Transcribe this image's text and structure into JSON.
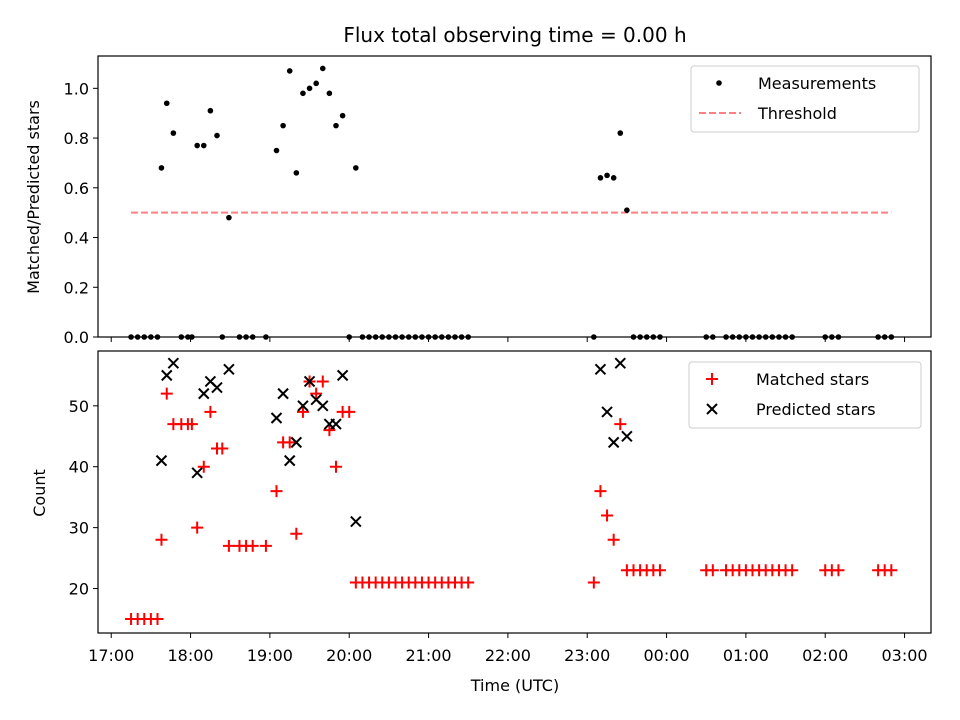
{
  "chart_data": [
    {
      "type": "scatter",
      "title": "Flux total observing time = 0.00 h",
      "xlabel": "",
      "ylabel": "Matched/Predicted stars",
      "xlim": [
        "16:50",
        "03:20"
      ],
      "ylim": [
        0.0,
        1.13
      ],
      "yticks": [
        0.0,
        0.2,
        0.4,
        0.6,
        0.8,
        1.0
      ],
      "yticklabels": [
        "0.0",
        "0.2",
        "0.4",
        "0.6",
        "0.8",
        "1.0"
      ],
      "legend_position": "top-right",
      "legend": [
        "Measurements",
        "Threshold"
      ],
      "threshold": {
        "name": "Threshold",
        "x_start": "17:15",
        "x_end": "02:50",
        "y": 0.5,
        "color": "#ff8080",
        "style": "dashed"
      },
      "series": [
        {
          "name": "Measurements",
          "color": "#000000",
          "points": [
            [
              "17:15",
              0
            ],
            [
              "17:20",
              0
            ],
            [
              "17:25",
              0
            ],
            [
              "17:30",
              0
            ],
            [
              "17:35",
              0
            ],
            [
              "17:38",
              0.68
            ],
            [
              "17:42",
              0.94
            ],
            [
              "17:47",
              0.82
            ],
            [
              "17:53",
              0
            ],
            [
              "17:58",
              0
            ],
            [
              "18:01",
              0
            ],
            [
              "18:05",
              0.77
            ],
            [
              "18:10",
              0.77
            ],
            [
              "18:15",
              0.91
            ],
            [
              "18:20",
              0.81
            ],
            [
              "18:24",
              0
            ],
            [
              "18:29",
              0.48
            ],
            [
              "18:37",
              0
            ],
            [
              "18:42",
              0
            ],
            [
              "18:47",
              0
            ],
            [
              "18:57",
              0
            ],
            [
              "19:05",
              0.75
            ],
            [
              "19:10",
              0.85
            ],
            [
              "19:15",
              1.07
            ],
            [
              "19:20",
              0.66
            ],
            [
              "19:25",
              0.98
            ],
            [
              "19:30",
              1.0
            ],
            [
              "19:35",
              1.02
            ],
            [
              "19:40",
              1.08
            ],
            [
              "19:45",
              0.98
            ],
            [
              "19:50",
              0.85
            ],
            [
              "19:55",
              0.89
            ],
            [
              "20:00",
              0
            ],
            [
              "20:05",
              0.68
            ],
            [
              "20:10",
              0
            ],
            [
              "20:15",
              0
            ],
            [
              "20:20",
              0
            ],
            [
              "20:25",
              0
            ],
            [
              "20:30",
              0
            ],
            [
              "20:35",
              0
            ],
            [
              "20:40",
              0
            ],
            [
              "20:45",
              0
            ],
            [
              "20:50",
              0
            ],
            [
              "20:55",
              0
            ],
            [
              "21:00",
              0
            ],
            [
              "21:05",
              0
            ],
            [
              "21:10",
              0
            ],
            [
              "21:15",
              0
            ],
            [
              "21:20",
              0
            ],
            [
              "21:25",
              0
            ],
            [
              "21:30",
              0
            ],
            [
              "23:05",
              0
            ],
            [
              "23:10",
              0.64
            ],
            [
              "23:15",
              0.65
            ],
            [
              "23:20",
              0.64
            ],
            [
              "23:25",
              0.82
            ],
            [
              "23:30",
              0.51
            ],
            [
              "23:35",
              0
            ],
            [
              "23:40",
              0
            ],
            [
              "23:45",
              0
            ],
            [
              "23:50",
              0
            ],
            [
              "23:55",
              0
            ],
            [
              "00:30",
              0
            ],
            [
              "00:35",
              0
            ],
            [
              "00:45",
              0
            ],
            [
              "00:50",
              0
            ],
            [
              "00:55",
              0
            ],
            [
              "01:00",
              0
            ],
            [
              "01:05",
              0
            ],
            [
              "01:10",
              0
            ],
            [
              "01:15",
              0
            ],
            [
              "01:20",
              0
            ],
            [
              "01:25",
              0
            ],
            [
              "01:30",
              0
            ],
            [
              "01:35",
              0
            ],
            [
              "02:00",
              0
            ],
            [
              "02:05",
              0
            ],
            [
              "02:10",
              0
            ],
            [
              "02:40",
              0
            ],
            [
              "02:45",
              0
            ],
            [
              "02:50",
              0
            ]
          ]
        }
      ]
    },
    {
      "type": "scatter",
      "title": "",
      "xlabel": "Time (UTC)",
      "ylabel": "Count",
      "xlim": [
        "16:50",
        "03:20"
      ],
      "ylim": [
        12.7,
        59.0
      ],
      "yticks": [
        20,
        30,
        40,
        50
      ],
      "yticklabels": [
        "20",
        "30",
        "40",
        "50"
      ],
      "xticks": [
        "17:00",
        "18:00",
        "19:00",
        "20:00",
        "21:00",
        "22:00",
        "23:00",
        "00:00",
        "01:00",
        "02:00",
        "03:00"
      ],
      "legend_position": "top-right",
      "legend": [
        "Matched stars",
        "Predicted stars"
      ],
      "series": [
        {
          "name": "Matched stars",
          "color": "#ff0000",
          "marker": "plus",
          "points": [
            [
              "17:15",
              15
            ],
            [
              "17:20",
              15
            ],
            [
              "17:25",
              15
            ],
            [
              "17:30",
              15
            ],
            [
              "17:35",
              15
            ],
            [
              "17:38",
              28
            ],
            [
              "17:42",
              52
            ],
            [
              "17:47",
              47
            ],
            [
              "17:53",
              47
            ],
            [
              "17:58",
              47
            ],
            [
              "18:01",
              47
            ],
            [
              "18:05",
              30
            ],
            [
              "18:10",
              40
            ],
            [
              "18:15",
              49
            ],
            [
              "18:20",
              43
            ],
            [
              "18:24",
              43
            ],
            [
              "18:29",
              27
            ],
            [
              "18:37",
              27
            ],
            [
              "18:42",
              27
            ],
            [
              "18:47",
              27
            ],
            [
              "18:57",
              27
            ],
            [
              "19:05",
              36
            ],
            [
              "19:10",
              44
            ],
            [
              "19:15",
              44
            ],
            [
              "19:20",
              29
            ],
            [
              "19:25",
              49
            ],
            [
              "19:30",
              54
            ],
            [
              "19:35",
              52
            ],
            [
              "19:40",
              54
            ],
            [
              "19:45",
              46
            ],
            [
              "19:50",
              40
            ],
            [
              "19:55",
              49
            ],
            [
              "20:00",
              49
            ],
            [
              "20:05",
              21
            ],
            [
              "20:10",
              21
            ],
            [
              "20:15",
              21
            ],
            [
              "20:20",
              21
            ],
            [
              "20:25",
              21
            ],
            [
              "20:30",
              21
            ],
            [
              "20:35",
              21
            ],
            [
              "20:40",
              21
            ],
            [
              "20:45",
              21
            ],
            [
              "20:50",
              21
            ],
            [
              "20:55",
              21
            ],
            [
              "21:00",
              21
            ],
            [
              "21:05",
              21
            ],
            [
              "21:10",
              21
            ],
            [
              "21:15",
              21
            ],
            [
              "21:20",
              21
            ],
            [
              "21:25",
              21
            ],
            [
              "21:30",
              21
            ],
            [
              "23:05",
              21
            ],
            [
              "23:10",
              36
            ],
            [
              "23:15",
              32
            ],
            [
              "23:20",
              28
            ],
            [
              "23:25",
              47
            ],
            [
              "23:30",
              23
            ],
            [
              "23:35",
              23
            ],
            [
              "23:40",
              23
            ],
            [
              "23:45",
              23
            ],
            [
              "23:50",
              23
            ],
            [
              "23:55",
              23
            ],
            [
              "00:30",
              23
            ],
            [
              "00:35",
              23
            ],
            [
              "00:45",
              23
            ],
            [
              "00:50",
              23
            ],
            [
              "00:55",
              23
            ],
            [
              "01:00",
              23
            ],
            [
              "01:05",
              23
            ],
            [
              "01:10",
              23
            ],
            [
              "01:15",
              23
            ],
            [
              "01:20",
              23
            ],
            [
              "01:25",
              23
            ],
            [
              "01:30",
              23
            ],
            [
              "01:35",
              23
            ],
            [
              "02:00",
              23
            ],
            [
              "02:05",
              23
            ],
            [
              "02:10",
              23
            ],
            [
              "02:40",
              23
            ],
            [
              "02:45",
              23
            ],
            [
              "02:50",
              23
            ]
          ]
        },
        {
          "name": "Predicted stars",
          "color": "#000000",
          "marker": "x",
          "points": [
            [
              "17:38",
              41
            ],
            [
              "17:42",
              55
            ],
            [
              "17:47",
              57
            ],
            [
              "18:05",
              39
            ],
            [
              "18:10",
              52
            ],
            [
              "18:15",
              54
            ],
            [
              "18:20",
              53
            ],
            [
              "18:29",
              56
            ],
            [
              "19:05",
              48
            ],
            [
              "19:10",
              52
            ],
            [
              "19:15",
              41
            ],
            [
              "19:20",
              44
            ],
            [
              "19:25",
              50
            ],
            [
              "19:30",
              54
            ],
            [
              "19:35",
              51
            ],
            [
              "19:40",
              50
            ],
            [
              "19:45",
              47
            ],
            [
              "19:50",
              47
            ],
            [
              "19:55",
              55
            ],
            [
              "20:05",
              31
            ],
            [
              "23:10",
              56
            ],
            [
              "23:15",
              49
            ],
            [
              "23:20",
              44
            ],
            [
              "23:25",
              57
            ],
            [
              "23:30",
              45
            ]
          ]
        }
      ]
    }
  ]
}
